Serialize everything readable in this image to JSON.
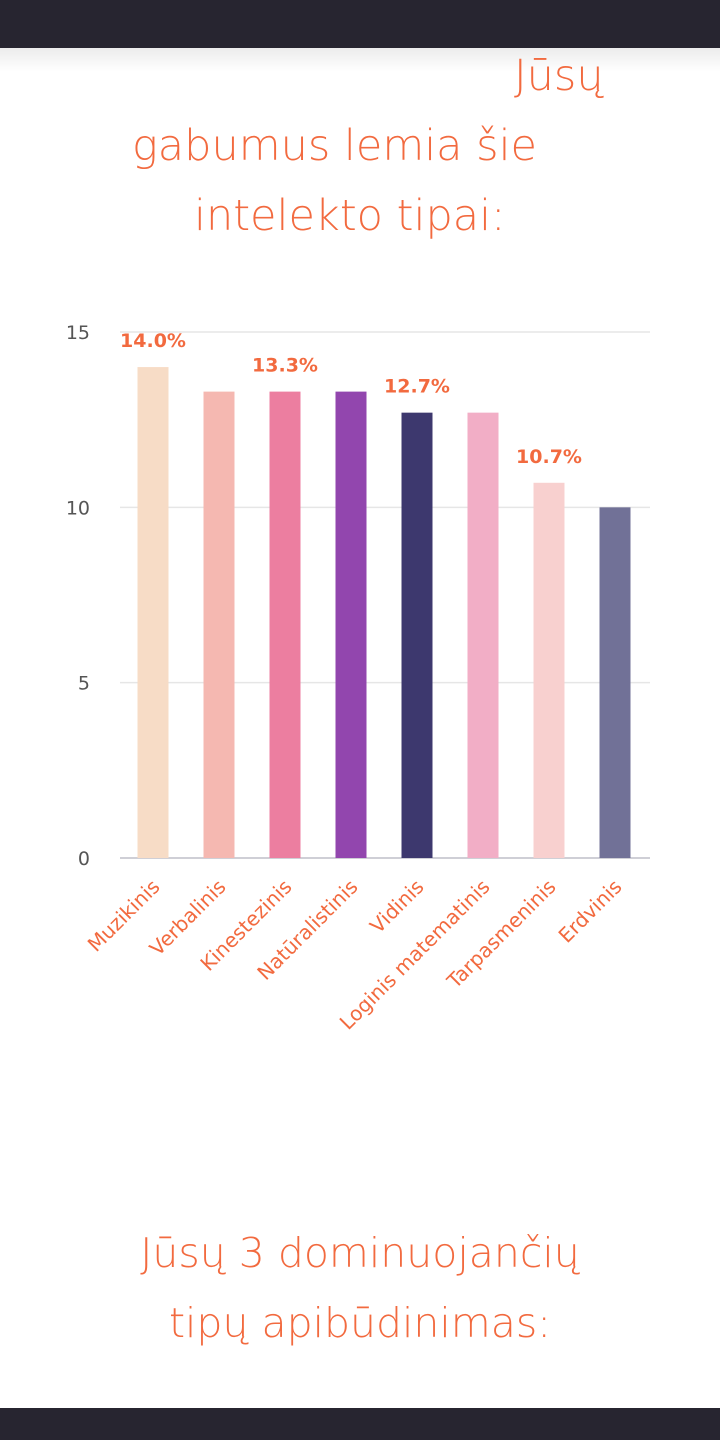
{
  "heading": {
    "line1": "Jūsų",
    "line2": "gabumus lemia šie",
    "line3": "intelekto tipai:"
  },
  "section2": {
    "line1": "Jūsų 3 dominuojančių",
    "line2": "tipų apibūdinimas:"
  },
  "colors": {
    "accent": "#f26a3f",
    "system_bar": "#272530",
    "grid": "#e6e6e6"
  },
  "chart_data": {
    "type": "bar",
    "categories": [
      "Muzikinis",
      "Verbalinis",
      "Kinestezinis",
      "Natūralistinis",
      "Vidinis",
      "Loginis matematinis",
      "Tarpasmeninis",
      "Erdvinis"
    ],
    "values": [
      14.0,
      13.3,
      13.3,
      13.3,
      12.7,
      12.7,
      10.7,
      10.0
    ],
    "data_labels": [
      "14.0%",
      "",
      "13.3%",
      "",
      "12.7%",
      "",
      "10.7%",
      ""
    ],
    "bar_colors": [
      "#f7dcc6",
      "#f5b8b1",
      "#ec7ea0",
      "#9246ae",
      "#3d386e",
      "#f2aec6",
      "#f8d0cf",
      "#717197"
    ],
    "yticks": [
      "0",
      "5",
      "10",
      "15"
    ],
    "ylim": [
      0,
      15
    ],
    "grid": true
  }
}
